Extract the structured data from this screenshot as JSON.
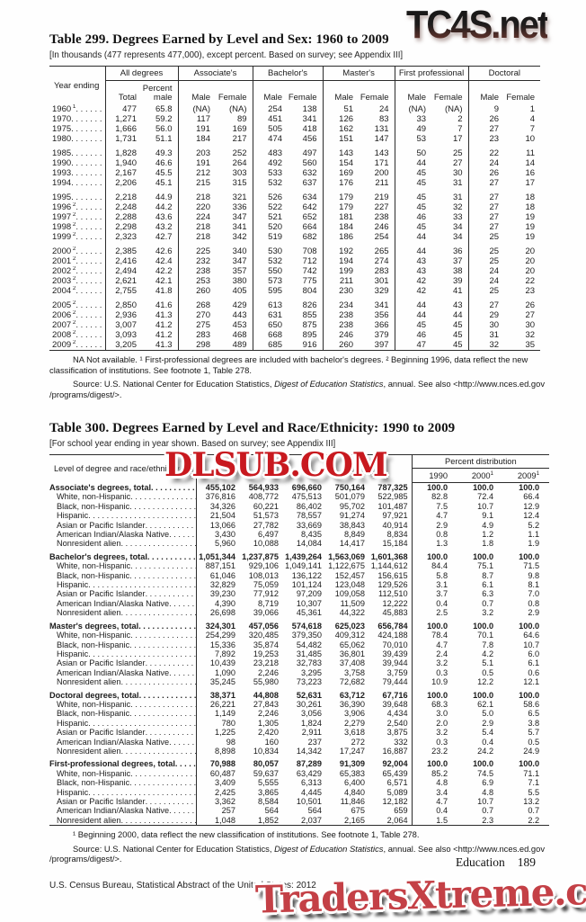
{
  "watermarks": {
    "top": "TC4S.net",
    "middle": "DLSUB.COM",
    "bottom": "TradersXtreme.com"
  },
  "table299": {
    "title": "Table 299. Degrees Earned by Level and Sex: 1960 to 2009",
    "note": "[In thousands (477 represents 477,000), except percent. Based on survey; see Appendix III]",
    "stub_header": "Year ending",
    "groups": [
      {
        "label": "All degrees",
        "cols": [
          "Total",
          "Percent male"
        ]
      },
      {
        "label": "Associate's",
        "cols": [
          "Male",
          "Female"
        ]
      },
      {
        "label": "Bachelor's",
        "cols": [
          "Male",
          "Female"
        ]
      },
      {
        "label": "Master's",
        "cols": [
          "Male",
          "Female"
        ]
      },
      {
        "label": "First professional",
        "cols": [
          "Male",
          "Female"
        ]
      },
      {
        "label": "Doctoral",
        "cols": [
          "Male",
          "Female"
        ]
      }
    ],
    "row_groups": [
      [
        {
          "y": "1960",
          "s": "1",
          "v": [
            "477",
            "65.8",
            "(NA)",
            "(NA)",
            "254",
            "138",
            "51",
            "24",
            "(NA)",
            "(NA)",
            "9",
            "1"
          ]
        },
        {
          "y": "1970",
          "s": "",
          "v": [
            "1,271",
            "59.2",
            "117",
            "89",
            "451",
            "341",
            "126",
            "83",
            "33",
            "2",
            "26",
            "4"
          ]
        },
        {
          "y": "1975",
          "s": "",
          "v": [
            "1,666",
            "56.0",
            "191",
            "169",
            "505",
            "418",
            "162",
            "131",
            "49",
            "7",
            "27",
            "7"
          ]
        },
        {
          "y": "1980",
          "s": "",
          "v": [
            "1,731",
            "51.1",
            "184",
            "217",
            "474",
            "456",
            "151",
            "147",
            "53",
            "17",
            "23",
            "10"
          ]
        }
      ],
      [
        {
          "y": "1985",
          "s": "",
          "v": [
            "1,828",
            "49.3",
            "203",
            "252",
            "483",
            "497",
            "143",
            "143",
            "50",
            "25",
            "22",
            "11"
          ]
        },
        {
          "y": "1990",
          "s": "",
          "v": [
            "1,940",
            "46.6",
            "191",
            "264",
            "492",
            "560",
            "154",
            "171",
            "44",
            "27",
            "24",
            "14"
          ]
        },
        {
          "y": "1993",
          "s": "",
          "v": [
            "2,167",
            "45.5",
            "212",
            "303",
            "533",
            "632",
            "169",
            "200",
            "45",
            "30",
            "26",
            "16"
          ]
        },
        {
          "y": "1994",
          "s": "",
          "v": [
            "2,206",
            "45.1",
            "215",
            "315",
            "532",
            "637",
            "176",
            "211",
            "45",
            "31",
            "27",
            "17"
          ]
        }
      ],
      [
        {
          "y": "1995",
          "s": "",
          "v": [
            "2,218",
            "44.9",
            "218",
            "321",
            "526",
            "634",
            "179",
            "219",
            "45",
            "31",
            "27",
            "18"
          ]
        },
        {
          "y": "1996",
          "s": "2",
          "v": [
            "2,248",
            "44.2",
            "220",
            "336",
            "522",
            "642",
            "179",
            "227",
            "45",
            "32",
            "27",
            "18"
          ]
        },
        {
          "y": "1997",
          "s": "2",
          "v": [
            "2,288",
            "43.6",
            "224",
            "347",
            "521",
            "652",
            "181",
            "238",
            "46",
            "33",
            "27",
            "19"
          ]
        },
        {
          "y": "1998",
          "s": "2",
          "v": [
            "2,298",
            "43.2",
            "218",
            "341",
            "520",
            "664",
            "184",
            "246",
            "45",
            "34",
            "27",
            "19"
          ]
        },
        {
          "y": "1999",
          "s": "2",
          "v": [
            "2,323",
            "42.7",
            "218",
            "342",
            "519",
            "682",
            "186",
            "254",
            "44",
            "34",
            "25",
            "19"
          ]
        }
      ],
      [
        {
          "y": "2000",
          "s": "2",
          "v": [
            "2,385",
            "42.6",
            "225",
            "340",
            "530",
            "708",
            "192",
            "265",
            "44",
            "36",
            "25",
            "20"
          ]
        },
        {
          "y": "2001",
          "s": "2",
          "v": [
            "2,416",
            "42.4",
            "232",
            "347",
            "532",
            "712",
            "194",
            "274",
            "43",
            "37",
            "25",
            "20"
          ]
        },
        {
          "y": "2002",
          "s": "2",
          "v": [
            "2,494",
            "42.2",
            "238",
            "357",
            "550",
            "742",
            "199",
            "283",
            "43",
            "38",
            "24",
            "20"
          ]
        },
        {
          "y": "2003",
          "s": "2",
          "v": [
            "2,621",
            "42.1",
            "253",
            "380",
            "573",
            "775",
            "211",
            "301",
            "42",
            "39",
            "24",
            "22"
          ]
        },
        {
          "y": "2004",
          "s": "2",
          "v": [
            "2,755",
            "41.8",
            "260",
            "405",
            "595",
            "804",
            "230",
            "329",
            "42",
            "41",
            "25",
            "23"
          ]
        }
      ],
      [
        {
          "y": "2005",
          "s": "2",
          "v": [
            "2,850",
            "41.6",
            "268",
            "429",
            "613",
            "826",
            "234",
            "341",
            "44",
            "43",
            "27",
            "26"
          ]
        },
        {
          "y": "2006",
          "s": "2",
          "v": [
            "2,936",
            "41.3",
            "270",
            "443",
            "631",
            "855",
            "238",
            "356",
            "44",
            "44",
            "29",
            "27"
          ]
        },
        {
          "y": "2007",
          "s": "2",
          "v": [
            "3,007",
            "41.2",
            "275",
            "453",
            "650",
            "875",
            "238",
            "366",
            "45",
            "45",
            "30",
            "30"
          ]
        },
        {
          "y": "2008",
          "s": "2",
          "v": [
            "3,093",
            "41.2",
            "283",
            "468",
            "668",
            "895",
            "246",
            "379",
            "46",
            "45",
            "31",
            "32"
          ]
        },
        {
          "y": "2009",
          "s": "2",
          "v": [
            "3,205",
            "41.3",
            "298",
            "489",
            "685",
            "916",
            "260",
            "397",
            "47",
            "45",
            "32",
            "35"
          ]
        }
      ]
    ],
    "footnote": "NA Not available. ¹ First-professional degrees are included with bachelor's degrees. ² Beginning 1996, data reflect the new classification of institutions. See footnote 1, Table 278.",
    "source_prefix": "Source: U.S. National Center for Education Statistics, ",
    "source_italic": "Digest of Education Statistics",
    "source_suffix": ", annual. See also <http://www.nces.ed.gov",
    "source_suffix2": "/programs/digest/>."
  },
  "table300": {
    "title": "Table 300. Degrees Earned by Level and Race/Ethnicity: 1990 to 2009",
    "note": "[For school year ending in year shown. Based on survey; see Appendix III]",
    "stub_header": "Level of degree and race/ethnicity",
    "percent_header": "Percent distribution",
    "pd_years": [
      {
        "y": "1990",
        "s": ""
      },
      {
        "y": "2000",
        "s": "1"
      },
      {
        "y": "2009",
        "s": "1"
      }
    ],
    "sections": [
      {
        "label": "Associate's degrees, total",
        "total": [
          "455,102",
          "564,933",
          "696,660",
          "750,164",
          "787,325",
          "100.0",
          "100.0",
          "100.0"
        ],
        "rows": [
          {
            "label": "White, non-Hispanic",
            "v": [
              "376,816",
              "408,772",
              "475,513",
              "501,079",
              "522,985",
              "82.8",
              "72.4",
              "66.4"
            ]
          },
          {
            "label": "Black, non-Hispanic",
            "v": [
              "34,326",
              "60,221",
              "86,402",
              "95,702",
              "101,487",
              "7.5",
              "10.7",
              "12.9"
            ]
          },
          {
            "label": "Hispanic",
            "v": [
              "21,504",
              "51,573",
              "78,557",
              "91,274",
              "97,921",
              "4.7",
              "9.1",
              "12.4"
            ]
          },
          {
            "label": "Asian or Pacific Islander",
            "v": [
              "13,066",
              "27,782",
              "33,669",
              "38,843",
              "40,914",
              "2.9",
              "4.9",
              "5.2"
            ]
          },
          {
            "label": "American Indian/Alaska Native",
            "v": [
              "3,430",
              "6,497",
              "8,435",
              "8,849",
              "8,834",
              "0.8",
              "1.2",
              "1.1"
            ]
          },
          {
            "label": "Nonresident alien",
            "v": [
              "5,960",
              "10,088",
              "14,084",
              "14,417",
              "15,184",
              "1.3",
              "1.8",
              "1.9"
            ]
          }
        ]
      },
      {
        "label": "Bachelor's degrees, total",
        "total": [
          "1,051,344",
          "1,237,875",
          "1,439,264",
          "1,563,069",
          "1,601,368",
          "100.0",
          "100.0",
          "100.0"
        ],
        "rows": [
          {
            "label": "White, non-Hispanic",
            "v": [
              "887,151",
              "929,106",
              "1,049,141",
              "1,122,675",
              "1,144,612",
              "84.4",
              "75.1",
              "71.5"
            ]
          },
          {
            "label": "Black, non-Hispanic",
            "v": [
              "61,046",
              "108,013",
              "136,122",
              "152,457",
              "156,615",
              "5.8",
              "8.7",
              "9.8"
            ]
          },
          {
            "label": "Hispanic",
            "v": [
              "32,829",
              "75,059",
              "101,124",
              "123,048",
              "129,526",
              "3.1",
              "6.1",
              "8.1"
            ]
          },
          {
            "label": "Asian or Pacific Islander",
            "v": [
              "39,230",
              "77,912",
              "97,209",
              "109,058",
              "112,510",
              "3.7",
              "6.3",
              "7.0"
            ]
          },
          {
            "label": "American Indian/Alaska Native",
            "v": [
              "4,390",
              "8,719",
              "10,307",
              "11,509",
              "12,222",
              "0.4",
              "0.7",
              "0.8"
            ]
          },
          {
            "label": "Nonresident alien",
            "v": [
              "26,698",
              "39,066",
              "45,361",
              "44,322",
              "45,883",
              "2.5",
              "3.2",
              "2.9"
            ]
          }
        ]
      },
      {
        "label": "Master's degrees, total",
        "total": [
          "324,301",
          "457,056",
          "574,618",
          "625,023",
          "656,784",
          "100.0",
          "100.0",
          "100.0"
        ],
        "rows": [
          {
            "label": "White, non-Hispanic",
            "v": [
              "254,299",
              "320,485",
              "379,350",
              "409,312",
              "424,188",
              "78.4",
              "70.1",
              "64.6"
            ]
          },
          {
            "label": "Black, non-Hispanic",
            "v": [
              "15,336",
              "35,874",
              "54,482",
              "65,062",
              "70,010",
              "4.7",
              "7.8",
              "10.7"
            ]
          },
          {
            "label": "Hispanic",
            "v": [
              "7,892",
              "19,253",
              "31,485",
              "36,801",
              "39,439",
              "2.4",
              "4.2",
              "6.0"
            ]
          },
          {
            "label": "Asian or Pacific Islander",
            "v": [
              "10,439",
              "23,218",
              "32,783",
              "37,408",
              "39,944",
              "3.2",
              "5.1",
              "6.1"
            ]
          },
          {
            "label": "American Indian/Alaska Native",
            "v": [
              "1,090",
              "2,246",
              "3,295",
              "3,758",
              "3,759",
              "0.3",
              "0.5",
              "0.6"
            ]
          },
          {
            "label": "Nonresident alien",
            "v": [
              "35,245",
              "55,980",
              "73,223",
              "72,682",
              "79,444",
              "10.9",
              "12.2",
              "12.1"
            ]
          }
        ]
      },
      {
        "label": "Doctoral degrees, total",
        "total": [
          "38,371",
          "44,808",
          "52,631",
          "63,712",
          "67,716",
          "100.0",
          "100.0",
          "100.0"
        ],
        "rows": [
          {
            "label": "White, non-Hispanic",
            "v": [
              "26,221",
              "27,843",
              "30,261",
              "36,390",
              "39,648",
              "68.3",
              "62.1",
              "58.6"
            ]
          },
          {
            "label": "Black, non-Hispanic",
            "v": [
              "1,149",
              "2,246",
              "3,056",
              "3,906",
              "4,434",
              "3.0",
              "5.0",
              "6.5"
            ]
          },
          {
            "label": "Hispanic",
            "v": [
              "780",
              "1,305",
              "1,824",
              "2,279",
              "2,540",
              "2.0",
              "2.9",
              "3.8"
            ]
          },
          {
            "label": "Asian or Pacific Islander",
            "v": [
              "1,225",
              "2,420",
              "2,911",
              "3,618",
              "3,875",
              "3.2",
              "5.4",
              "5.7"
            ]
          },
          {
            "label": "American Indian/Alaska Native",
            "v": [
              "98",
              "160",
              "237",
              "272",
              "332",
              "0.3",
              "0.4",
              "0.5"
            ]
          },
          {
            "label": "Nonresident alien",
            "v": [
              "8,898",
              "10,834",
              "14,342",
              "17,247",
              "16,887",
              "23.2",
              "24.2",
              "24.9"
            ]
          }
        ]
      },
      {
        "label": "First-professional degrees, total",
        "total": [
          "70,988",
          "80,057",
          "87,289",
          "91,309",
          "92,004",
          "100.0",
          "100.0",
          "100.0"
        ],
        "rows": [
          {
            "label": "White, non-Hispanic",
            "v": [
              "60,487",
              "59,637",
              "63,429",
              "65,383",
              "65,439",
              "85.2",
              "74.5",
              "71.1"
            ]
          },
          {
            "label": "Black, non-Hispanic",
            "v": [
              "3,409",
              "5,555",
              "6,313",
              "6,400",
              "6,571",
              "4.8",
              "6.9",
              "7.1"
            ]
          },
          {
            "label": "Hispanic",
            "v": [
              "2,425",
              "3,865",
              "4,445",
              "4,840",
              "5,089",
              "3.4",
              "4.8",
              "5.5"
            ]
          },
          {
            "label": "Asian or Pacific Islander",
            "v": [
              "3,362",
              "8,584",
              "10,501",
              "11,846",
              "12,182",
              "4.7",
              "10.7",
              "13.2"
            ]
          },
          {
            "label": "American Indian/Alaska Native",
            "v": [
              "257",
              "564",
              "564",
              "675",
              "659",
              "0.4",
              "0.7",
              "0.7"
            ]
          },
          {
            "label": "Nonresident alien",
            "v": [
              "1,048",
              "1,852",
              "2,037",
              "2,165",
              "2,064",
              "1.5",
              "2.3",
              "2.2"
            ]
          }
        ]
      }
    ],
    "footnote": "¹ Beginning 2000, data reflect the new classification of institutions. See footnote 1, Table 278.",
    "source_prefix": "Source: U.S. National Center for Education Statistics, ",
    "source_italic": "Digest of Education Statistics",
    "source_suffix": ", annual. See also <http://www.nces.ed.gov",
    "source_suffix2": "/programs/digest/>."
  },
  "footer": {
    "section": "Education",
    "page": "189",
    "census": "U.S. Census Bureau, Statistical Abstract of the United States: 2012"
  }
}
